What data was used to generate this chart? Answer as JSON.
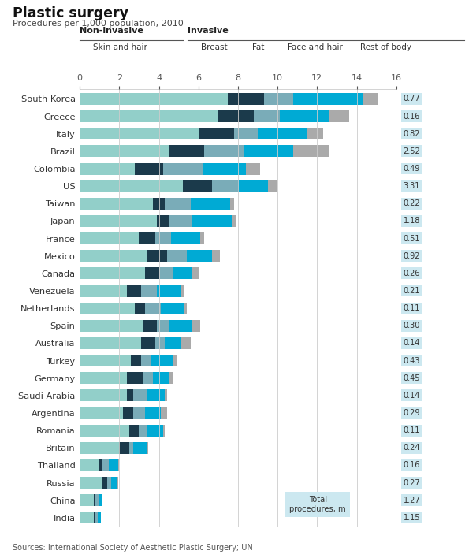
{
  "title": "Plastic surgery",
  "subtitle": "Procedures per 1,000 population, 2010",
  "source": "Sources: International Society of Aesthetic Plastic Surgery; UN",
  "colors": {
    "skin_hair": "#92cfc9",
    "breast": "#1b3a4b",
    "fat": "#7aacb8",
    "face_hair": "#00aad4",
    "rest_body": "#aaaaaa"
  },
  "title_red": "#e2001a",
  "bg_color": "#ffffff",
  "label_bg": "#cce8f0",
  "countries": [
    "South Korea",
    "Greece",
    "Italy",
    "Brazil",
    "Colombia",
    "US",
    "Taiwan",
    "Japan",
    "France",
    "Mexico",
    "Canada",
    "Venezuela",
    "Netherlands",
    "Spain",
    "Australia",
    "Turkey",
    "Germany",
    "Saudi Arabia",
    "Argentina",
    "Romania",
    "Britain",
    "Thailand",
    "Russia",
    "China",
    "India"
  ],
  "total_procedures": [
    0.77,
    0.16,
    0.82,
    2.52,
    0.49,
    3.31,
    0.22,
    1.18,
    0.51,
    0.92,
    0.26,
    0.21,
    0.11,
    0.3,
    0.14,
    0.43,
    0.45,
    0.14,
    0.29,
    0.11,
    0.24,
    0.16,
    0.27,
    1.27,
    1.15
  ],
  "segments": {
    "skin_hair": [
      7.5,
      7.0,
      6.0,
      4.5,
      2.8,
      5.2,
      3.7,
      3.9,
      3.0,
      3.4,
      3.3,
      2.4,
      2.8,
      3.2,
      3.1,
      2.6,
      2.4,
      2.4,
      2.2,
      2.5,
      2.0,
      1.0,
      1.1,
      0.7,
      0.7
    ],
    "breast": [
      1.8,
      1.8,
      1.8,
      1.8,
      1.4,
      1.5,
      0.6,
      0.6,
      0.8,
      1.0,
      0.7,
      0.7,
      0.5,
      0.7,
      0.7,
      0.5,
      0.8,
      0.3,
      0.5,
      0.5,
      0.5,
      0.15,
      0.3,
      0.1,
      0.1
    ],
    "fat": [
      1.5,
      1.3,
      1.2,
      2.0,
      2.0,
      1.3,
      1.3,
      1.2,
      0.8,
      1.0,
      0.7,
      0.8,
      0.8,
      0.6,
      0.5,
      0.5,
      0.5,
      0.7,
      0.6,
      0.4,
      0.2,
      0.3,
      0.2,
      0.15,
      0.1
    ],
    "face_hair": [
      3.5,
      2.5,
      2.5,
      2.5,
      2.2,
      1.5,
      2.0,
      2.0,
      1.5,
      1.3,
      1.0,
      1.2,
      1.2,
      1.2,
      0.8,
      1.1,
      0.8,
      0.9,
      0.8,
      0.8,
      0.7,
      0.5,
      0.3,
      0.15,
      0.15
    ],
    "rest_body": [
      0.8,
      1.0,
      0.8,
      1.8,
      0.7,
      0.5,
      0.2,
      0.2,
      0.2,
      0.4,
      0.3,
      0.2,
      0.1,
      0.4,
      0.5,
      0.2,
      0.2,
      0.1,
      0.3,
      0.1,
      0.05,
      0.05,
      0.05,
      0.0,
      0.0
    ]
  },
  "xlim": [
    0,
    16
  ],
  "xticks": [
    0,
    2,
    4,
    6,
    8,
    10,
    12,
    14,
    16
  ],
  "grid_color": "#cccccc",
  "tick_label_color": "#555555"
}
